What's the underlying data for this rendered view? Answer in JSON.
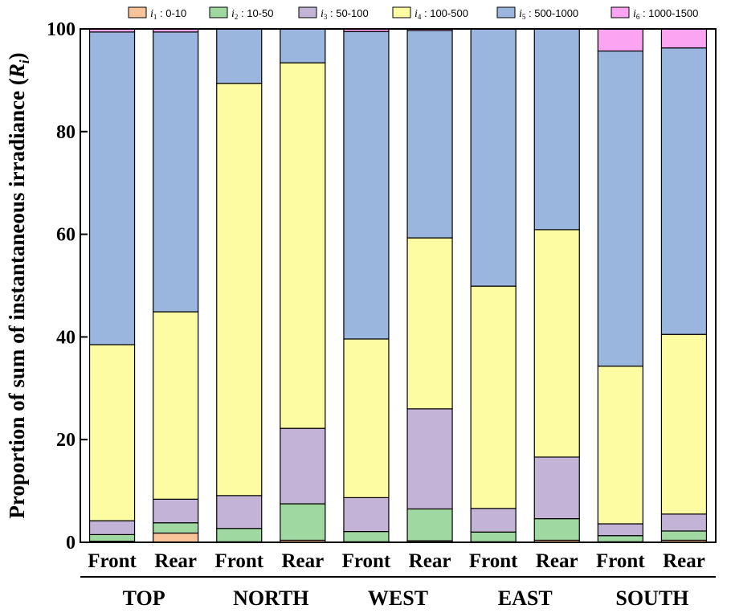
{
  "chart_data": {
    "type": "bar",
    "stacked": true,
    "ylabel": "Proportion of sum of instantaneous irradiance (",
    "ylabel_symbol": "R",
    "ylabel_subscript": "i",
    "ylabel_close": ")",
    "ylim": [
      0,
      100
    ],
    "yticks": [
      0,
      20,
      40,
      60,
      80,
      100
    ],
    "categories": [
      "Front",
      "Rear",
      "Front",
      "Rear",
      "Front",
      "Rear",
      "Front",
      "Rear",
      "Front",
      "Rear"
    ],
    "groups": [
      "TOP",
      "NORTH",
      "WEST",
      "EAST",
      "SOUTH"
    ],
    "series": [
      {
        "name": "0-10",
        "symbol": "i",
        "sub": "1",
        "color": "#f9c39a",
        "values": [
          0.2,
          1.8,
          0.1,
          0.4,
          0.1,
          0.3,
          0.1,
          0.4,
          0.1,
          0.4
        ]
      },
      {
        "name": "10-50",
        "symbol": "i",
        "sub": "2",
        "color": "#9fd8a0",
        "values": [
          1.3,
          2.0,
          2.6,
          7.1,
          2.0,
          6.2,
          1.9,
          4.2,
          1.2,
          1.8
        ]
      },
      {
        "name": "50-100",
        "symbol": "i",
        "sub": "3",
        "color": "#c3b3d6",
        "values": [
          2.7,
          4.6,
          6.4,
          14.7,
          6.6,
          19.5,
          4.6,
          12.0,
          2.3,
          3.3
        ]
      },
      {
        "name": "100-500",
        "symbol": "i",
        "sub": "4",
        "color": "#fdfca3",
        "values": [
          34.3,
          36.5,
          80.3,
          71.2,
          30.9,
          33.3,
          43.3,
          44.3,
          30.7,
          35.0
        ]
      },
      {
        "name": "500-1000",
        "symbol": "i",
        "sub": "5",
        "color": "#9ab5de",
        "values": [
          60.9,
          54.5,
          10.6,
          6.6,
          59.9,
          40.4,
          50.1,
          39.1,
          61.4,
          55.8
        ]
      },
      {
        "name": "1000-1500",
        "symbol": "i",
        "sub": "6",
        "color": "#fba4f1",
        "values": [
          0.6,
          0.6,
          0.0,
          0.0,
          0.5,
          0.3,
          0.0,
          0.0,
          4.3,
          3.7
        ]
      }
    ]
  }
}
